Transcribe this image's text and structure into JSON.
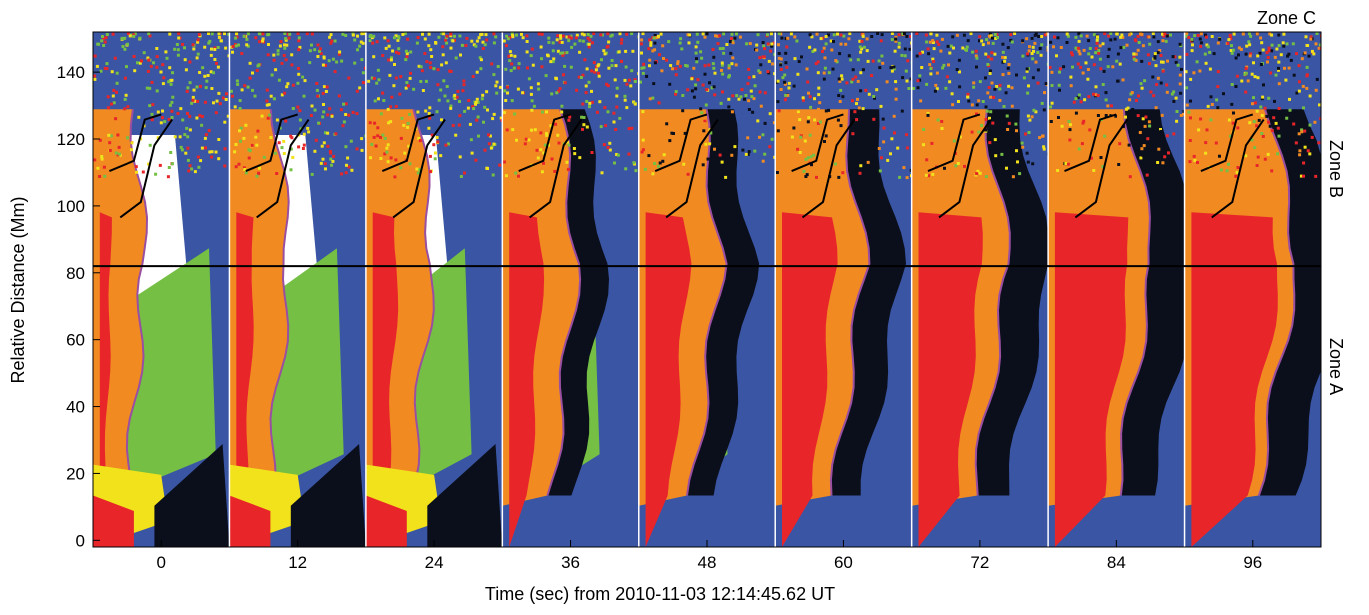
{
  "chart_data": {
    "type": "image",
    "xlabel": "Time (sec) from 2010-11-03 12:14:45.62 UT",
    "ylabel": "Relative Distance (Mm)",
    "xlim": [
      -6,
      102
    ],
    "ylim": [
      -2,
      152
    ],
    "xticks": [
      0,
      12,
      24,
      36,
      48,
      60,
      72,
      84,
      96
    ],
    "yticks": [
      0,
      20,
      40,
      60,
      80,
      100,
      120,
      140
    ],
    "zone_boundary": 82,
    "annotations": [
      "Zone A",
      "Zone B",
      "Zone C"
    ]
  }
}
